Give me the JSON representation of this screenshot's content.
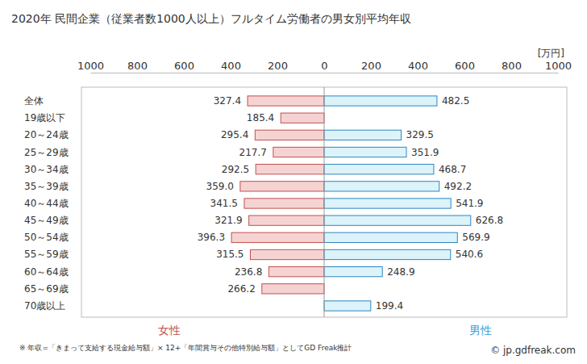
{
  "chart_data": {
    "type": "bar",
    "orientation": "horizontal",
    "title": "2020年 民間企業（従業者数1000人以上）フルタイム労働者の男女別平均年収",
    "x_label": "[万円]",
    "note": "※ 年収=「きまって支給する現金給与額」× 12+「年間賞与その他特別給与額」としてGD Freak推計",
    "credit": "© jp.gdfreak.com",
    "categories": [
      "全体",
      "19歳以下",
      "20～24歳",
      "25～29歳",
      "30～34歳",
      "35～39歳",
      "40～44歳",
      "45～49歳",
      "50～54歳",
      "55～59歳",
      "60～64歳",
      "65～69歳",
      "70歳以上"
    ],
    "series": [
      {
        "name": "女性",
        "color": "#f6d3d3",
        "values": [
          327.4,
          185.4,
          295.4,
          217.7,
          292.5,
          359.0,
          341.5,
          321.9,
          396.3,
          315.5,
          236.8,
          266.2,
          null
        ],
        "value_labels": [
          "327.4",
          "185.4",
          "295.4",
          "217.7",
          "292.5",
          "359.0",
          "341.5",
          "321.9",
          "396.3",
          "315.5",
          "236.8",
          "266.2",
          null
        ]
      },
      {
        "name": "男性",
        "color": "#dcf3fa",
        "values": [
          482.5,
          null,
          329.5,
          351.9,
          468.7,
          492.2,
          541.9,
          626.8,
          569.9,
          540.6,
          248.9,
          null,
          199.4
        ],
        "value_labels": [
          "482.5",
          null,
          "329.5",
          "351.9",
          "468.7",
          "492.2",
          "541.9",
          "626.8",
          "569.9",
          "540.6",
          "248.9",
          null,
          "199.4"
        ]
      }
    ],
    "xlim": [
      0,
      1000
    ],
    "xticks": [
      0,
      200,
      400,
      600,
      800,
      1000
    ],
    "data_labels": true,
    "grid": false
  }
}
